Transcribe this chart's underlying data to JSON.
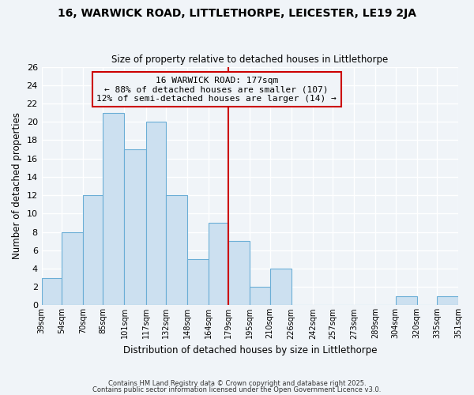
{
  "title1": "16, WARWICK ROAD, LITTLETHORPE, LEICESTER, LE19 2JA",
  "title2": "Size of property relative to detached houses in Littlethorpe",
  "xlabel": "Distribution of detached houses by size in Littlethorpe",
  "ylabel": "Number of detached properties",
  "bin_edges": [
    39,
    54,
    70,
    85,
    101,
    117,
    132,
    148,
    164,
    179,
    195,
    210,
    226,
    242,
    257,
    273,
    289,
    304,
    320,
    335,
    351
  ],
  "bin_labels": [
    "39sqm",
    "54sqm",
    "70sqm",
    "85sqm",
    "101sqm",
    "117sqm",
    "132sqm",
    "148sqm",
    "164sqm",
    "179sqm",
    "195sqm",
    "210sqm",
    "226sqm",
    "242sqm",
    "257sqm",
    "273sqm",
    "289sqm",
    "304sqm",
    "320sqm",
    "335sqm",
    "351sqm"
  ],
  "values": [
    3,
    8,
    12,
    21,
    17,
    20,
    12,
    5,
    9,
    7,
    2,
    4,
    0,
    0,
    0,
    0,
    0,
    1,
    0,
    1
  ],
  "bar_color": "#cce0f0",
  "bar_edge_color": "#6baed6",
  "vline_x": 179,
  "vline_color": "#cc0000",
  "annotation_text": "16 WARWICK ROAD: 177sqm\n← 88% of detached houses are smaller (107)\n12% of semi-detached houses are larger (14) →",
  "background_color": "#f0f4f8",
  "grid_color": "#ffffff",
  "ylim": [
    0,
    26
  ],
  "yticks": [
    0,
    2,
    4,
    6,
    8,
    10,
    12,
    14,
    16,
    18,
    20,
    22,
    24,
    26
  ],
  "footnote1": "Contains HM Land Registry data © Crown copyright and database right 2025.",
  "footnote2": "Contains public sector information licensed under the Open Government Licence v3.0."
}
